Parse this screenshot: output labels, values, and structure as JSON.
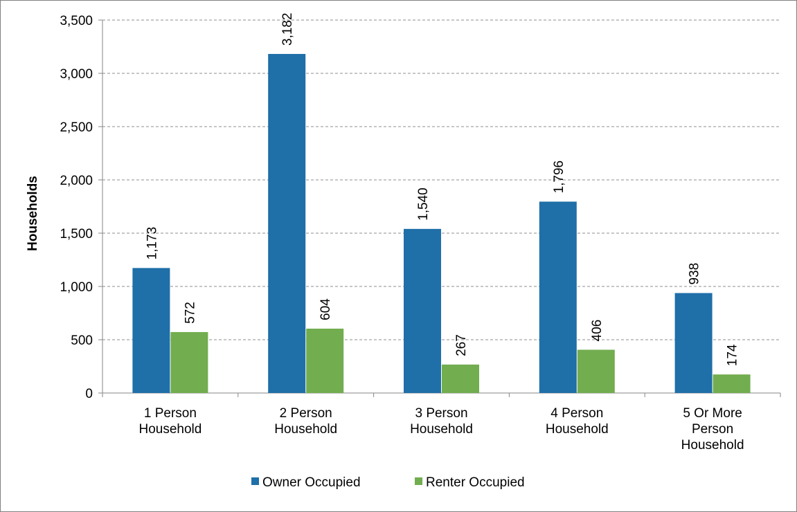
{
  "chart_data": {
    "type": "bar",
    "title": "",
    "xlabel": "",
    "ylabel": "Households",
    "ylim": [
      0,
      3500
    ],
    "yticks": [
      0,
      500,
      1000,
      1500,
      2000,
      2500,
      3000,
      3500
    ],
    "ytick_labels": [
      "0",
      "500",
      "1,000",
      "1,500",
      "2,000",
      "2,500",
      "3,000",
      "3,500"
    ],
    "grid": true,
    "legend_position": "bottom",
    "categories": [
      [
        "1 Person",
        "Household"
      ],
      [
        "2 Person",
        "Household"
      ],
      [
        "3 Person",
        "Household"
      ],
      [
        "4 Person",
        "Household"
      ],
      [
        "5 Or More",
        "Person",
        "Household"
      ]
    ],
    "series": [
      {
        "name": "Owner Occupied",
        "color": "#1f6fa8",
        "values": [
          1173,
          3182,
          1540,
          1796,
          938
        ],
        "labels": [
          "1,173",
          "3,182",
          "1,540",
          "1,796",
          "938"
        ]
      },
      {
        "name": "Renter Occupied",
        "color": "#72ad4f",
        "values": [
          572,
          604,
          267,
          406,
          174
        ],
        "labels": [
          "572",
          "604",
          "267",
          "406",
          "174"
        ]
      }
    ]
  }
}
